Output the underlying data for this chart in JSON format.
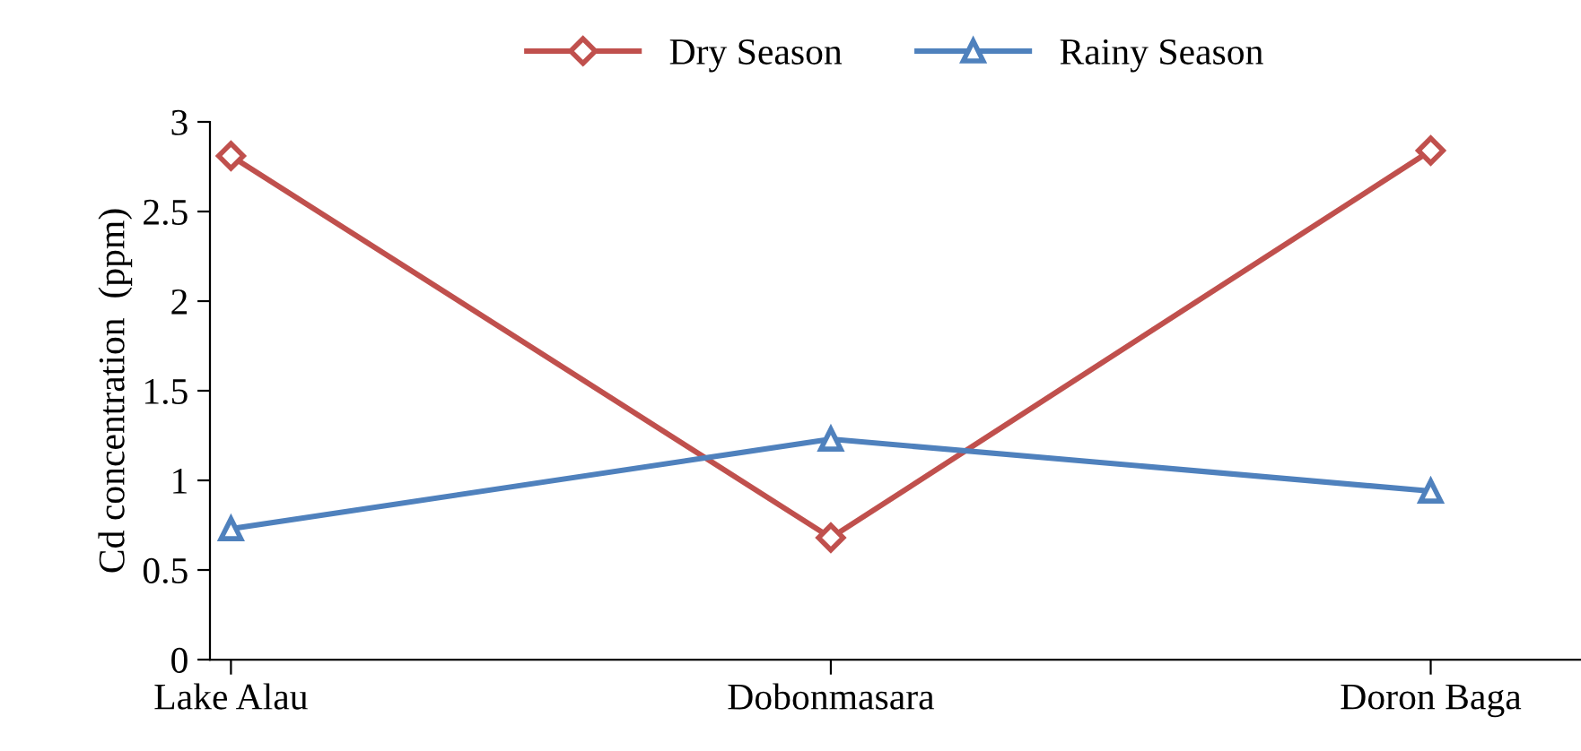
{
  "chart_data": {
    "type": "line",
    "ylabel": "Cd concentration  (ppm)",
    "categories": [
      "Lake Alau",
      "Dobonmasara",
      "Doron Baga"
    ],
    "series": [
      {
        "name": "Dry Season",
        "color": "#c0504d",
        "marker": "diamond",
        "values": [
          2.81,
          0.68,
          2.84
        ]
      },
      {
        "name": "Rainy Season",
        "color": "#4f81bd",
        "marker": "triangle",
        "values": [
          0.73,
          1.23,
          0.94
        ]
      }
    ],
    "ylim": [
      0,
      3
    ],
    "yticks": [
      0,
      0.5,
      1,
      1.5,
      2,
      2.5,
      3
    ],
    "grid": false,
    "legend": "top",
    "line_style": "solid"
  }
}
